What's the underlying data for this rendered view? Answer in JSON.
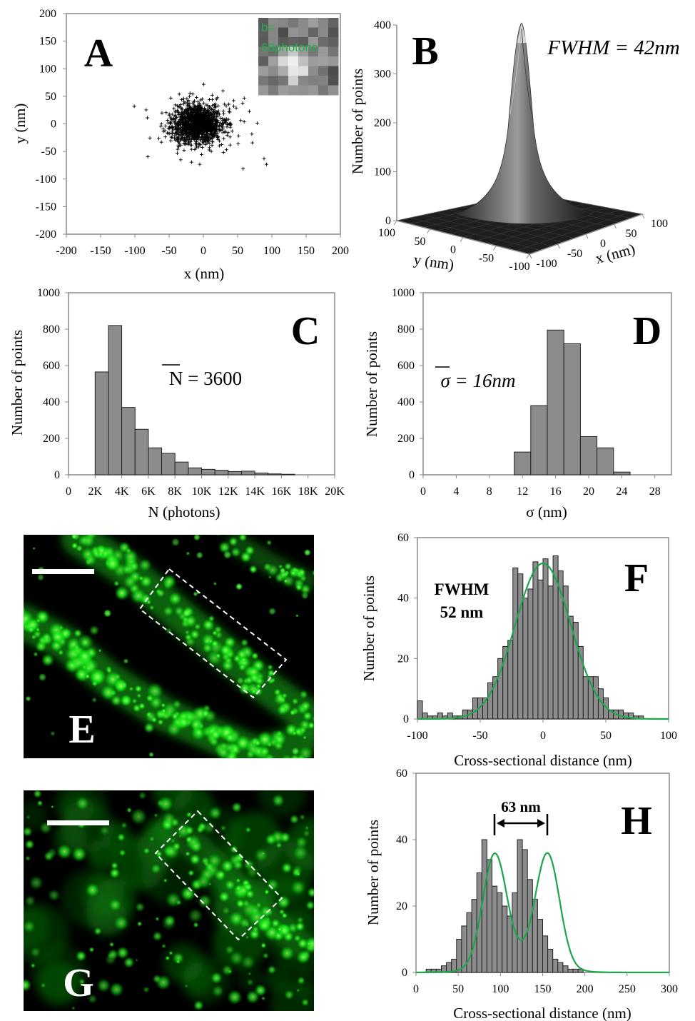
{
  "chart_data": [
    {
      "id": "A",
      "type": "scatter",
      "panel_label": "A",
      "xlabel": "x (nm)",
      "ylabel": "y (nm)",
      "xlim": [
        -200,
        200
      ],
      "ylim": [
        -200,
        200
      ],
      "xticks": [
        "-200",
        "-150",
        "-100",
        "-50",
        "0",
        "50",
        "100",
        "150",
        "200"
      ],
      "yticks": [
        "200",
        "150",
        "100",
        "50",
        "0",
        "-50",
        "-100",
        "-150",
        "-200"
      ],
      "marker": "+",
      "scatter_sigma_nm": 18,
      "inset": {
        "text": "b=68photons",
        "text_color": "#1fb04a"
      }
    },
    {
      "id": "B",
      "type": "surface3d",
      "panel_label": "B",
      "annotation": "FWHM = 42nm",
      "zlabel": "Number of points",
      "xlabel": "x (nm)",
      "ylabel": "y (nm)",
      "zlim": [
        0,
        400
      ],
      "zticks": [
        "400",
        "300",
        "200",
        "100",
        "0"
      ],
      "xticks": [
        "-100",
        "-50",
        "0",
        "50",
        "100"
      ],
      "yticks": [
        "100",
        "50",
        "0",
        "-50",
        "-100"
      ],
      "peak": 400
    },
    {
      "id": "C",
      "type": "bar",
      "panel_label": "C",
      "annotation": "N = 3600",
      "xlabel": "N (photons)",
      "ylabel": "Number of points",
      "ylim": [
        0,
        1000
      ],
      "xticks": [
        "0",
        "2K",
        "4K",
        "6K",
        "8K",
        "10K",
        "12K",
        "14K",
        "16K",
        "18K",
        "20K"
      ],
      "yticks": [
        "1000",
        "800",
        "600",
        "400",
        "200",
        "0"
      ],
      "bin_starts": [
        2000,
        3000,
        4000,
        5000,
        6000,
        7000,
        8000,
        9000,
        10000,
        11000,
        12000,
        13000,
        14000,
        15000,
        16000
      ],
      "values": [
        565,
        820,
        370,
        250,
        148,
        118,
        70,
        38,
        30,
        25,
        18,
        20,
        10,
        5,
        3
      ]
    },
    {
      "id": "D",
      "type": "bar",
      "panel_label": "D",
      "annotation": "σ = 16nm",
      "xlabel": "σ (nm)",
      "ylabel": "Number of points",
      "ylim": [
        0,
        1000
      ],
      "xticks": [
        "0",
        "4",
        "8",
        "12",
        "16",
        "20",
        "24",
        "28"
      ],
      "yticks": [
        "1000",
        "800",
        "600",
        "400",
        "200",
        "0"
      ],
      "bin_starts": [
        11,
        13,
        15,
        17,
        19,
        21,
        23
      ],
      "values": [
        125,
        380,
        795,
        720,
        210,
        148,
        15
      ]
    },
    {
      "id": "F",
      "type": "bar",
      "panel_label": "F",
      "annotation": [
        "FWHM",
        "52 nm"
      ],
      "xlabel": "Cross-sectional distance (nm)",
      "ylabel": "Number of points",
      "xlim": [
        -100,
        100
      ],
      "ylim": [
        0,
        60
      ],
      "xticks": [
        "-100",
        "-50",
        "0",
        "50",
        "100"
      ],
      "yticks": [
        "60",
        "40",
        "20",
        "0"
      ],
      "bin_width": 4,
      "values": [
        6,
        2,
        1,
        1,
        2,
        1,
        2,
        1,
        1,
        3,
        3,
        7,
        7,
        7,
        12,
        14,
        20,
        24,
        26,
        50,
        48,
        40,
        43,
        52,
        46,
        53,
        44,
        54,
        49,
        44,
        34,
        32,
        24,
        14,
        14,
        14,
        10,
        7,
        3,
        3,
        3,
        2,
        2,
        1,
        1,
        0,
        0,
        0,
        0,
        0
      ],
      "fit": {
        "type": "gaussian",
        "mean": 0,
        "fwhm": 52,
        "amplitude": 51.5,
        "color": "#1aa64a"
      }
    },
    {
      "id": "H",
      "type": "bar",
      "panel_label": "H",
      "annotation": "63 nm",
      "xlabel": "Cross-sectional distance (nm)",
      "ylabel": "Number of points",
      "xlim": [
        0,
        300
      ],
      "ylim": [
        0,
        60
      ],
      "xticks": [
        "0",
        "50",
        "100",
        "150",
        "200",
        "250",
        "300"
      ],
      "yticks": [
        "60",
        "40",
        "20",
        "0"
      ],
      "bin_width": 6,
      "values": [
        0,
        0,
        1,
        1,
        1,
        2,
        3,
        4,
        10,
        14,
        18,
        22,
        30,
        40,
        34,
        26,
        24,
        20,
        17,
        24,
        40,
        37,
        28,
        22,
        16,
        11,
        7,
        4,
        3,
        2,
        1,
        1,
        1,
        0,
        0,
        0,
        0,
        0,
        0,
        0,
        0,
        0,
        0,
        0,
        0,
        0,
        0,
        0,
        0,
        0
      ],
      "fit": {
        "type": "double-gaussian",
        "means": [
          93,
          156
        ],
        "sigma": 14,
        "amplitudes": [
          33,
          33
        ],
        "baseline_width": 34,
        "baseline_amp": 4.5,
        "color": "#1aa64a"
      }
    },
    {
      "id": "E",
      "type": "image",
      "panel_label": "E",
      "image_color": "#00ff00"
    },
    {
      "id": "G",
      "type": "image",
      "panel_label": "G",
      "image_color": "#00ff00"
    }
  ]
}
